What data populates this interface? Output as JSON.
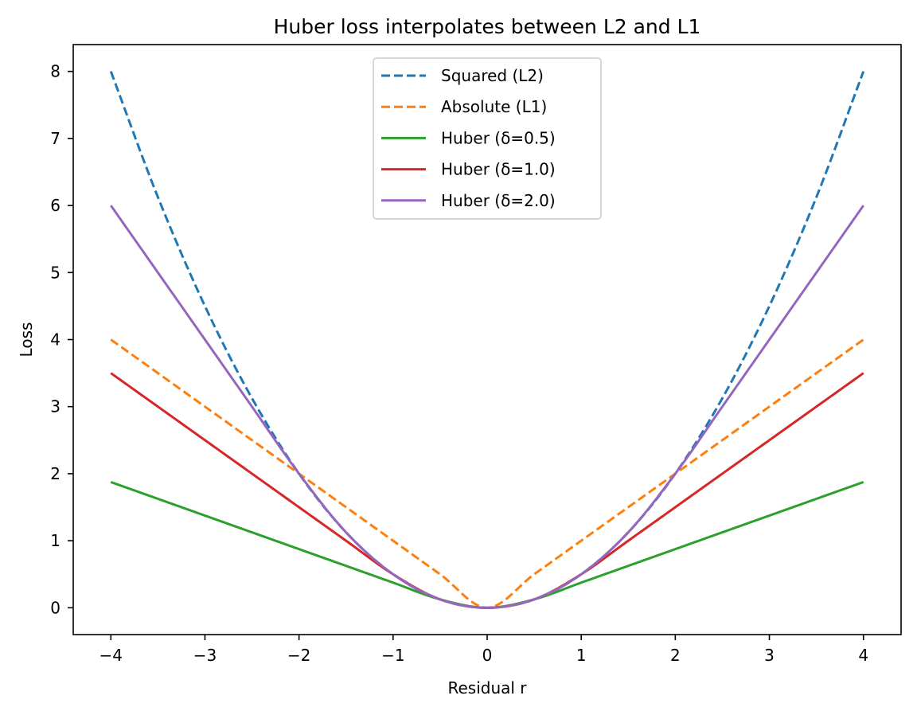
{
  "chart_data": {
    "type": "line",
    "title": "Huber loss interpolates between L2 and L1",
    "xlabel": "Residual r",
    "ylabel": "Loss",
    "xlim": [
      -4.4,
      4.4
    ],
    "ylim": [
      -0.4,
      8.4
    ],
    "xticks": [
      -4,
      -3,
      -2,
      -1,
      0,
      1,
      2,
      3,
      4
    ],
    "xtick_labels": [
      "−4",
      "−3",
      "−2",
      "−1",
      "0",
      "1",
      "2",
      "3",
      "4"
    ],
    "yticks": [
      0,
      1,
      2,
      3,
      4,
      5,
      6,
      7,
      8
    ],
    "ytick_labels": [
      "0",
      "1",
      "2",
      "3",
      "4",
      "5",
      "6",
      "7",
      "8"
    ],
    "grid": false,
    "legend_position": "upper center",
    "x": [
      -4,
      -3.5,
      -3,
      -2.5,
      -2,
      -1.5,
      -1,
      -0.5,
      0,
      0.5,
      1,
      1.5,
      2,
      2.5,
      3,
      3.5,
      4
    ],
    "series": [
      {
        "name": "Squared (L2)",
        "style": "dashed",
        "color": "#1f77b4",
        "values": [
          8,
          6.125,
          4.5,
          3.125,
          2,
          1.125,
          0.5,
          0.125,
          0,
          0.125,
          0.5,
          1.125,
          2,
          3.125,
          4.5,
          6.125,
          8
        ]
      },
      {
        "name": "Absolute (L1)",
        "style": "dashed",
        "color": "#ff7f0e",
        "values": [
          4,
          3.5,
          3,
          2.5,
          2,
          1.5,
          1,
          0.5,
          0,
          0.5,
          1,
          1.5,
          2,
          2.5,
          3,
          3.5,
          4
        ]
      },
      {
        "name": "Huber (δ=0.5)",
        "style": "solid",
        "color": "#2ca02c",
        "values": [
          1.875,
          1.625,
          1.375,
          1.125,
          0.875,
          0.625,
          0.375,
          0.125,
          0,
          0.125,
          0.375,
          0.625,
          0.875,
          1.125,
          1.375,
          1.625,
          1.875
        ]
      },
      {
        "name": "Huber (δ=1.0)",
        "style": "solid",
        "color": "#d62728",
        "values": [
          3.5,
          3,
          2.5,
          2,
          1.5,
          1,
          0.5,
          0.125,
          0,
          0.125,
          0.5,
          1,
          1.5,
          2,
          2.5,
          3,
          3.5
        ]
      },
      {
        "name": "Huber (δ=2.0)",
        "style": "solid",
        "color": "#9467bd",
        "values": [
          6,
          5,
          4,
          3,
          2,
          1.125,
          0.5,
          0.125,
          0,
          0.125,
          0.5,
          1.125,
          2,
          3,
          4,
          5,
          6
        ]
      }
    ]
  }
}
